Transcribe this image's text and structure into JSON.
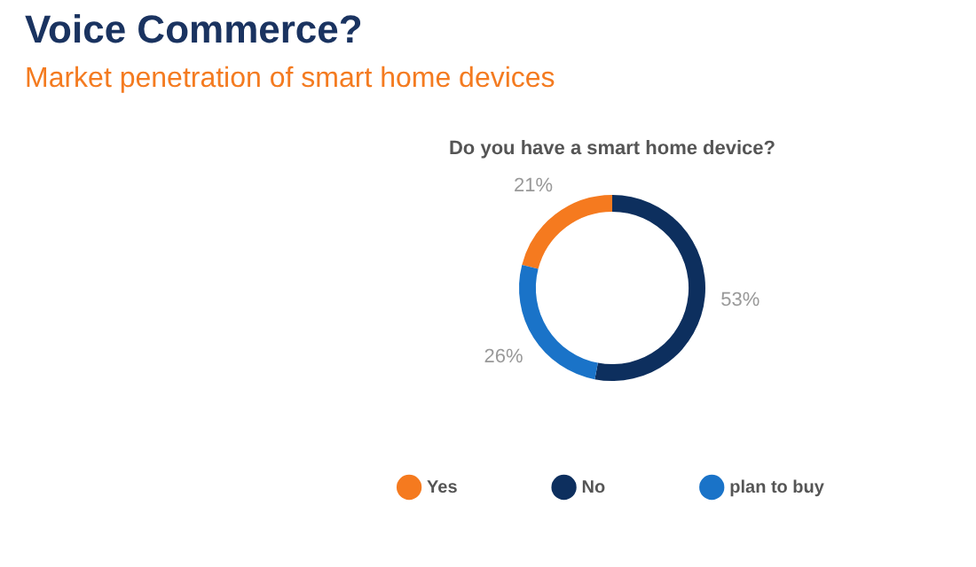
{
  "chart_data": {
    "type": "donut",
    "title": "Voice Commerce?",
    "subtitle": "Market penetration of smart home devices",
    "annotations": [
      "Do you have a smart home device?"
    ],
    "categories": [
      "Yes",
      "No",
      "plan to buy"
    ],
    "values": [
      21,
      53,
      26
    ],
    "colors": [
      "#f57a1f",
      "#0d2f5e",
      "#1a73c8"
    ],
    "value_labels": [
      "21%",
      "53%",
      "26%"
    ],
    "legend": "bottom"
  }
}
